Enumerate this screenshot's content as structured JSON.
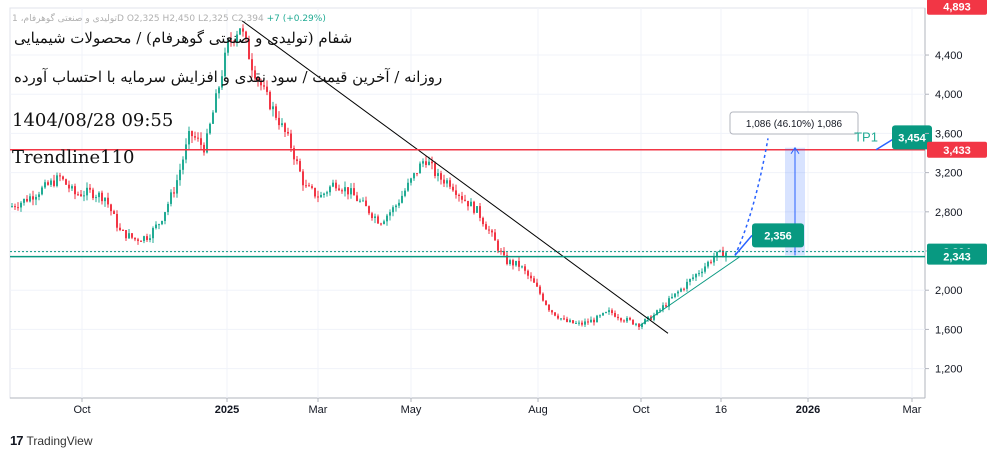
{
  "title_lines": [
    "شفام (تولیدی و صنعتی گوهرفام) / محصولات شیمیایی",
    "روزانه / آخرین قیمت / سود نقدی و افزایش سرمایه با احتساب آورده",
    "1404/08/28 09:55",
    "Trendline110"
  ],
  "ohlc_readout": {
    "symbol": "تولیدی و صنعتی گوهرفام، 1D",
    "o": "O2,325",
    "h": "H2,450",
    "l": "L2,325",
    "c": "C2,394",
    "change": "+7 (+0.29%)"
  },
  "footer": {
    "brand": "TradingView",
    "logo": "17"
  },
  "colors": {
    "up": "#22ab94",
    "down": "#f23645",
    "resistance": "#f23645",
    "support": "#089981",
    "projection": "#2962ff",
    "trendline": "#000000"
  },
  "chart_data": {
    "type": "candlestick",
    "y_axis": {
      "ticks": [
        1200,
        1600,
        2000,
        2400,
        2800,
        3200,
        3600,
        4000,
        4400
      ],
      "tick_labels": [
        "1,200",
        "1,600",
        "2,000",
        "2,400",
        "2,800",
        "3,200",
        "3,600",
        "4,000",
        "4,400"
      ],
      "range": [
        900,
        4880
      ]
    },
    "x_axis": {
      "labels": [
        "Oct",
        "2025",
        "Mar",
        "May",
        "Aug",
        "Oct",
        "16",
        "2026",
        "Mar"
      ]
    },
    "price_labels": [
      {
        "text": "4,893",
        "value": 4893,
        "color": "#f23645"
      },
      {
        "text": "3,433",
        "value": 3433,
        "color": "#f23645"
      },
      {
        "text": "2,394",
        "value": 2394,
        "color": "#089981"
      },
      {
        "text": "2,343",
        "value": 2343,
        "color": "#089981"
      }
    ],
    "levels": [
      {
        "name": "resistance",
        "value": 3433
      },
      {
        "name": "support",
        "value": 2343
      }
    ],
    "annotations": {
      "measure": "1,086 (46.10%) 1,086",
      "target_label": "TP1",
      "target_value": "3,454",
      "entry_value": "2,356"
    },
    "series_sample": [
      {
        "x": "2024-09",
        "close": 2850
      },
      {
        "x": "2024-10",
        "close": 3050
      },
      {
        "x": "2024-11",
        "close": 2550
      },
      {
        "x": "2024-12",
        "close": 3500
      },
      {
        "x": "2025-01",
        "close": 4300
      },
      {
        "x": "2025-02",
        "close": 3600
      },
      {
        "x": "2025-03",
        "close": 3000
      },
      {
        "x": "2025-04",
        "close": 2750
      },
      {
        "x": "2025-05",
        "close": 3350
      },
      {
        "x": "2025-06",
        "close": 2900
      },
      {
        "x": "2025-07",
        "close": 2200
      },
      {
        "x": "2025-08",
        "close": 1650
      },
      {
        "x": "2025-09",
        "close": 1700
      },
      {
        "x": "2025-10",
        "close": 1650
      },
      {
        "x": "2025-11",
        "close": 2394
      }
    ]
  }
}
